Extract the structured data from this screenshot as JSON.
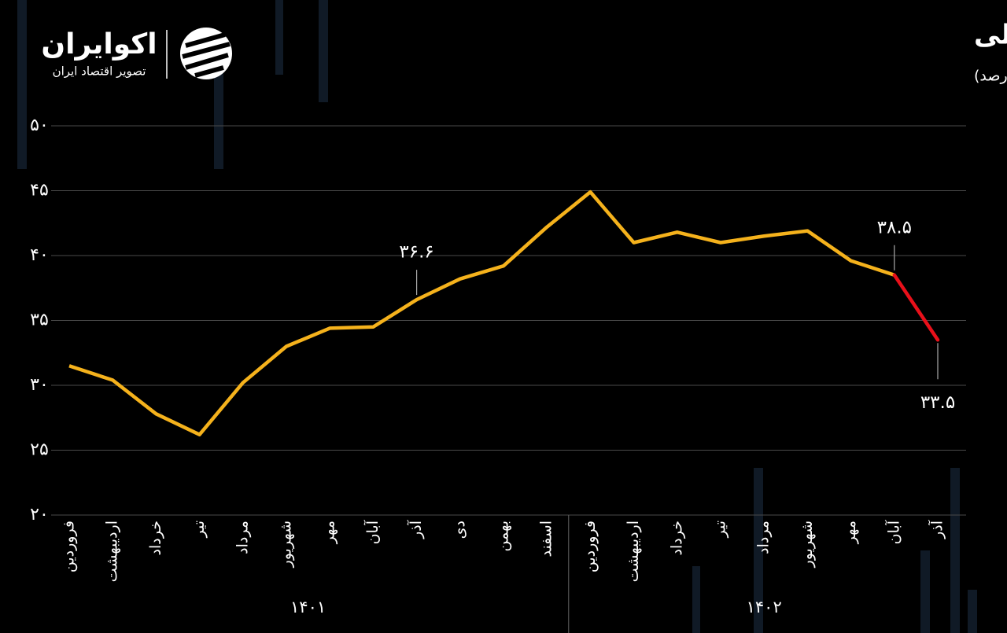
{
  "logo": {
    "name": "اکوایران",
    "tagline": "تصویر اقتصاد ایران"
  },
  "chart_data": {
    "type": "line",
    "title": "روند رشد دوازده ماهه پایه پولی",
    "subtitle": "(واحد: درصد)",
    "categories": [
      "فروردین",
      "اردیبهشت",
      "خرداد",
      "تیر",
      "مرداد",
      "شهریور",
      "مهر",
      "آبان",
      "آذر",
      "دی",
      "بهمن",
      "اسفند",
      "فروردین",
      "اردیبهشت",
      "خرداد",
      "تیر",
      "مرداد",
      "شهریور",
      "مهر",
      "آبان",
      "آذر"
    ],
    "groups": [
      {
        "label": "۱۴۰۱",
        "size": 12
      },
      {
        "label": "۱۴۰۲",
        "size": 9
      }
    ],
    "series": [
      {
        "color": "#f5b21c",
        "highlight_last_color": "#e8101a",
        "values": [
          31.5,
          30.4,
          27.8,
          26.2,
          30.2,
          33.0,
          34.4,
          34.5,
          36.6,
          38.2,
          39.2,
          42.2,
          44.9,
          41.0,
          41.8,
          41.0,
          41.5,
          41.9,
          39.6,
          38.5,
          33.5
        ],
        "value_labels": [
          null,
          null,
          null,
          null,
          null,
          null,
          null,
          null,
          "۳۶.۶",
          null,
          null,
          null,
          null,
          null,
          null,
          null,
          null,
          null,
          null,
          "۳۸.۵",
          "۳۳.۵"
        ]
      }
    ],
    "ylim": [
      20,
      50
    ],
    "yticks": [
      {
        "value": 20,
        "label": "۲۰"
      },
      {
        "value": 25,
        "label": "۲۵"
      },
      {
        "value": 30,
        "label": "۳۰"
      },
      {
        "value": 35,
        "label": "۳۵"
      },
      {
        "value": 40,
        "label": "۴۰"
      },
      {
        "value": 45,
        "label": "۴۵"
      },
      {
        "value": 50,
        "label": "۵۰"
      }
    ],
    "grid": true
  }
}
